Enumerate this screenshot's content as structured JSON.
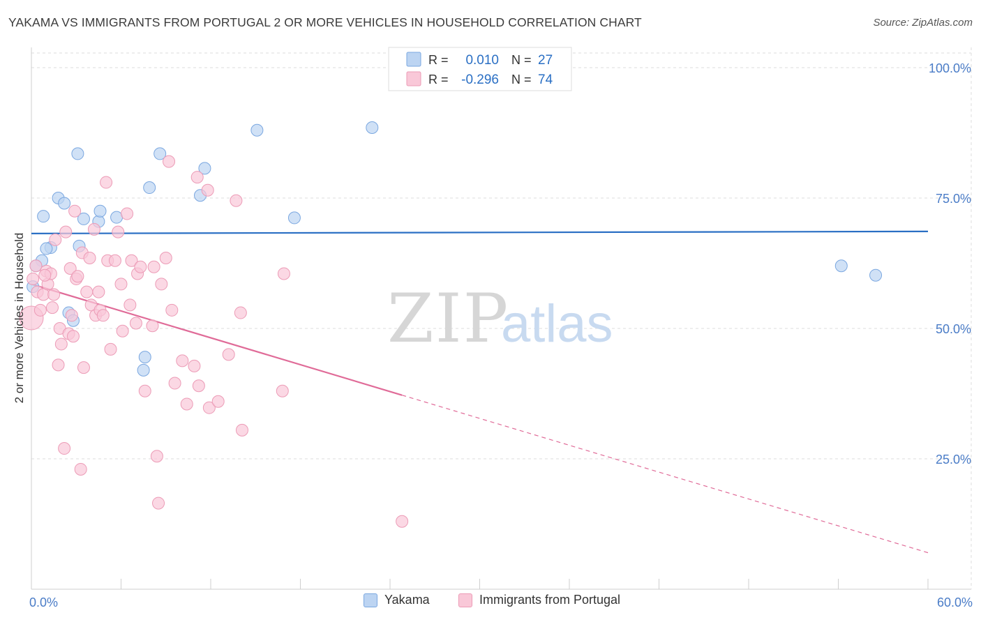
{
  "title": "YAKAMA VS IMMIGRANTS FROM PORTUGAL 2 OR MORE VEHICLES IN HOUSEHOLD CORRELATION CHART",
  "source": "Source: ZipAtlas.com",
  "colors": {
    "blue_fill": "#bcd4f2",
    "blue_stroke": "#7aa7e0",
    "blue_line": "#2a6fc4",
    "pink_fill": "#f9c8d8",
    "pink_stroke": "#ec9bb6",
    "pink_line": "#e06b98",
    "axis_label": "#4a7cc7",
    "grid": "#dddddd"
  },
  "watermark": {
    "zip": "ZIP",
    "atlas": "atlas"
  },
  "stats_legend": {
    "rows": [
      {
        "series": "blue",
        "r_label": "R =",
        "r_value": "0.010",
        "n_label": "N =",
        "n_value": "27"
      },
      {
        "series": "pink",
        "r_label": "R =",
        "r_value": "-0.296",
        "n_label": "N =",
        "n_value": "74"
      }
    ]
  },
  "legend": {
    "blue_label": "Yakama",
    "pink_label": "Immigrants from Portugal"
  },
  "chart_data": {
    "type": "scatter",
    "title": "YAKAMA VS IMMIGRANTS FROM PORTUGAL 2 OR MORE VEHICLES IN HOUSEHOLD CORRELATION CHART",
    "xlabel": "",
    "ylabel": "2 or more Vehicles in Household",
    "xlim": [
      0,
      60
    ],
    "ylim": [
      0,
      103
    ],
    "x_tick_labels": [
      "0.0%",
      "60.0%"
    ],
    "y_ticks": [
      100,
      75,
      50,
      25
    ],
    "y_tick_labels": [
      "100.0%",
      "75.0%",
      "50.0%",
      "25.0%"
    ],
    "grid": true,
    "series": [
      {
        "name": "Yakama",
        "color": "blue",
        "r": 0.01,
        "n": 27,
        "trend": {
          "x0": 0,
          "y0": 68.2,
          "x1": 60,
          "y1": 68.6,
          "solid_until": 60
        },
        "points": [
          [
            0.1,
            58.0
          ],
          [
            0.7,
            63.0
          ],
          [
            0.8,
            71.5
          ],
          [
            1.3,
            65.5
          ],
          [
            1.8,
            75.0
          ],
          [
            2.2,
            74.0
          ],
          [
            2.5,
            53.0
          ],
          [
            2.8,
            51.5
          ],
          [
            3.1,
            83.5
          ],
          [
            3.2,
            65.8
          ],
          [
            3.5,
            71.0
          ],
          [
            4.5,
            70.5
          ],
          [
            4.6,
            72.5
          ],
          [
            5.7,
            71.3
          ],
          [
            7.5,
            42.0
          ],
          [
            7.6,
            44.5
          ],
          [
            7.9,
            77.0
          ],
          [
            8.6,
            83.5
          ],
          [
            11.3,
            75.5
          ],
          [
            11.6,
            80.7
          ],
          [
            15.1,
            88.0
          ],
          [
            17.6,
            71.2
          ],
          [
            22.8,
            88.5
          ],
          [
            54.2,
            62.0
          ],
          [
            56.5,
            60.2
          ],
          [
            0.3,
            62.0
          ],
          [
            1.0,
            65.3
          ]
        ]
      },
      {
        "name": "Immigrants from Portugal",
        "color": "pink",
        "r": -0.296,
        "n": 74,
        "trend": {
          "x0": 0,
          "y0": 58.5,
          "x1": 60,
          "y1": 7.0,
          "solid_until": 24.8
        },
        "points": [
          [
            0.0,
            52.0
          ],
          [
            0.1,
            59.5
          ],
          [
            0.3,
            62.0
          ],
          [
            0.4,
            57.0
          ],
          [
            0.6,
            53.5
          ],
          [
            0.8,
            56.5
          ],
          [
            1.0,
            61.0
          ],
          [
            1.1,
            58.5
          ],
          [
            1.3,
            60.5
          ],
          [
            1.5,
            56.5
          ],
          [
            1.6,
            67.0
          ],
          [
            1.8,
            43.0
          ],
          [
            1.9,
            50.0
          ],
          [
            2.0,
            47.0
          ],
          [
            2.2,
            27.0
          ],
          [
            2.3,
            68.5
          ],
          [
            2.5,
            49.0
          ],
          [
            2.6,
            61.5
          ],
          [
            2.7,
            52.5
          ],
          [
            2.8,
            48.5
          ],
          [
            2.9,
            72.5
          ],
          [
            3.0,
            59.5
          ],
          [
            3.1,
            60.0
          ],
          [
            3.3,
            23.0
          ],
          [
            3.4,
            64.5
          ],
          [
            3.5,
            42.5
          ],
          [
            3.7,
            57.0
          ],
          [
            3.9,
            63.5
          ],
          [
            4.0,
            54.5
          ],
          [
            4.2,
            69.0
          ],
          [
            4.3,
            52.5
          ],
          [
            4.5,
            57.0
          ],
          [
            4.6,
            53.5
          ],
          [
            4.8,
            52.5
          ],
          [
            5.0,
            78.0
          ],
          [
            5.1,
            63.0
          ],
          [
            5.3,
            46.0
          ],
          [
            5.6,
            63.0
          ],
          [
            5.8,
            68.5
          ],
          [
            6.0,
            58.5
          ],
          [
            6.1,
            49.5
          ],
          [
            6.4,
            72.0
          ],
          [
            6.6,
            54.5
          ],
          [
            6.7,
            63.0
          ],
          [
            7.0,
            51.0
          ],
          [
            7.1,
            60.5
          ],
          [
            7.3,
            61.8
          ],
          [
            7.6,
            38.0
          ],
          [
            8.1,
            50.5
          ],
          [
            8.2,
            61.8
          ],
          [
            8.4,
            25.5
          ],
          [
            8.5,
            16.5
          ],
          [
            8.7,
            58.5
          ],
          [
            9.0,
            63.5
          ],
          [
            9.2,
            82.0
          ],
          [
            9.4,
            53.5
          ],
          [
            9.6,
            39.5
          ],
          [
            10.1,
            43.8
          ],
          [
            10.4,
            35.5
          ],
          [
            10.9,
            42.8
          ],
          [
            11.1,
            79.0
          ],
          [
            11.2,
            39.0
          ],
          [
            11.8,
            76.5
          ],
          [
            11.9,
            34.8
          ],
          [
            12.5,
            36.0
          ],
          [
            13.2,
            45.0
          ],
          [
            13.7,
            74.5
          ],
          [
            14.0,
            53.0
          ],
          [
            14.1,
            30.5
          ],
          [
            16.8,
            38.0
          ],
          [
            16.9,
            60.5
          ],
          [
            24.8,
            13.0
          ],
          [
            1.4,
            54.0
          ],
          [
            0.9,
            60.2
          ]
        ]
      }
    ]
  }
}
